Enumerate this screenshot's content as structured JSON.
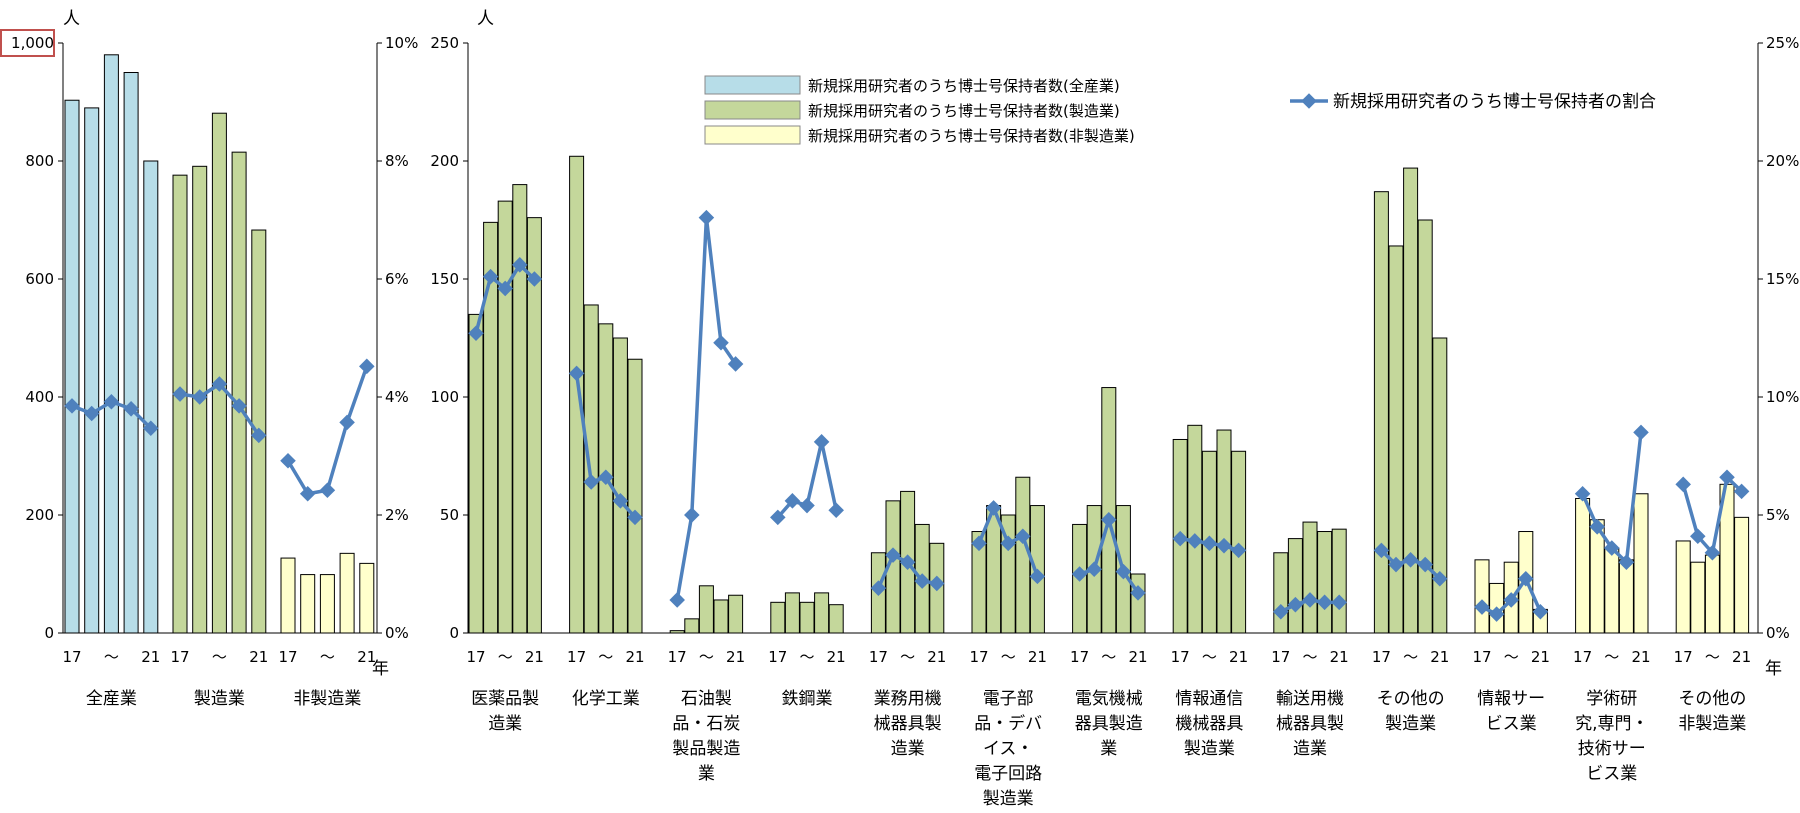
{
  "chart_data": [
    {
      "type": "bar",
      "panel": "left",
      "y_unit": "人",
      "y2_unit": "",
      "x_unit": "年",
      "ylim": [
        0,
        1000
      ],
      "y_ticks": [
        "0",
        "200",
        "400",
        "600",
        "800",
        "1,000"
      ],
      "y2lim": [
        0,
        10
      ],
      "y2_ticks": [
        "0%",
        "2%",
        "4%",
        "6%",
        "8%",
        "10%"
      ],
      "year_labels": [
        "17",
        "～",
        "21"
      ],
      "groups": [
        {
          "label": [
            "全産業"
          ],
          "kind": "all",
          "bars": [
            903,
            890,
            980,
            950,
            800
          ],
          "ratio": [
            3.85,
            3.72,
            3.92,
            3.8,
            3.47
          ]
        },
        {
          "label": [
            "製造業"
          ],
          "kind": "mfg",
          "bars": [
            776,
            791,
            881,
            815,
            683
          ],
          "ratio": [
            4.05,
            4.0,
            4.22,
            3.85,
            3.35
          ]
        },
        {
          "label": [
            "非製造業"
          ],
          "kind": "nonmfg",
          "bars": [
            127,
            99,
            99,
            135,
            118
          ],
          "ratio": [
            2.92,
            2.36,
            2.42,
            3.57,
            4.52
          ]
        }
      ]
    },
    {
      "type": "bar",
      "panel": "right",
      "y_unit": "人",
      "x_unit": "年",
      "ylim": [
        0,
        250
      ],
      "y_ticks": [
        "0",
        "50",
        "100",
        "150",
        "200",
        "250"
      ],
      "y2lim": [
        0,
        25
      ],
      "y2_ticks": [
        "0%",
        "5%",
        "10%",
        "15%",
        "20%",
        "25%"
      ],
      "year_labels": [
        "17",
        "～",
        "21"
      ],
      "legend": {
        "all": "新規採用研究者のうち博士号保持者数(全産業)",
        "mfg": "新規採用研究者のうち博士号保持者数(製造業)",
        "nonmfg": "新規採用研究者のうち博士号保持者数(非製造業)",
        "line": "新規採用研究者のうち博士号保持者の割合"
      },
      "groups": [
        {
          "label": [
            "医薬品製",
            "造業"
          ],
          "kind": "mfg",
          "bars": [
            135,
            174,
            183,
            190,
            176
          ],
          "ratio": [
            12.7,
            15.1,
            14.6,
            15.6,
            15.0
          ]
        },
        {
          "label": [
            "化学工業"
          ],
          "kind": "mfg",
          "bars": [
            202,
            139,
            131,
            125,
            116
          ],
          "ratio": [
            11.0,
            6.4,
            6.6,
            5.6,
            4.9
          ]
        },
        {
          "label": [
            "石油製",
            "品・石炭",
            "製品製造",
            "業"
          ],
          "kind": "mfg",
          "bars": [
            1,
            6,
            20,
            14,
            16
          ],
          "ratio": [
            1.4,
            5.0,
            17.6,
            12.3,
            11.4
          ]
        },
        {
          "label": [
            "鉄鋼業"
          ],
          "kind": "mfg",
          "bars": [
            13,
            17,
            13,
            17,
            12
          ],
          "ratio": [
            4.9,
            5.6,
            5.4,
            8.1,
            5.2
          ]
        },
        {
          "label": [
            "業務用機",
            "械器具製",
            "造業"
          ],
          "kind": "mfg",
          "bars": [
            34,
            56,
            60,
            46,
            38
          ],
          "ratio": [
            1.9,
            3.3,
            3.0,
            2.2,
            2.1
          ]
        },
        {
          "label": [
            "電子部",
            "品・デバ",
            "イス・",
            "電子回路",
            "製造業"
          ],
          "kind": "mfg",
          "bars": [
            43,
            54,
            50,
            66,
            54
          ],
          "ratio": [
            3.8,
            5.3,
            3.8,
            4.1,
            2.4
          ]
        },
        {
          "label": [
            "電気機械",
            "器具製造",
            "業"
          ],
          "kind": "mfg",
          "bars": [
            46,
            54,
            104,
            54,
            25
          ],
          "ratio": [
            2.5,
            2.7,
            4.8,
            2.6,
            1.7
          ]
        },
        {
          "label": [
            "情報通信",
            "機械器具",
            "製造業"
          ],
          "kind": "mfg",
          "bars": [
            82,
            88,
            77,
            86,
            77
          ],
          "ratio": [
            4.0,
            3.9,
            3.8,
            3.7,
            3.5
          ]
        },
        {
          "label": [
            "輸送用機",
            "械器具製",
            "造業"
          ],
          "kind": "mfg",
          "bars": [
            34,
            40,
            47,
            43,
            44
          ],
          "ratio": [
            0.9,
            1.2,
            1.4,
            1.3,
            1.3
          ]
        },
        {
          "label": [
            "その他の",
            "製造業"
          ],
          "kind": "mfg",
          "bars": [
            187,
            164,
            197,
            175,
            125
          ],
          "ratio": [
            3.5,
            2.9,
            3.1,
            2.9,
            2.3
          ]
        },
        {
          "label": [
            "情報サー",
            "ビス業"
          ],
          "kind": "nonmfg",
          "bars": [
            31,
            21,
            30,
            43,
            10
          ],
          "ratio": [
            1.1,
            0.8,
            1.4,
            2.3,
            0.9
          ]
        },
        {
          "label": [
            "学術研",
            "究,専門・",
            "技術サー",
            "ビス業"
          ],
          "kind": "nonmfg",
          "bars": [
            57,
            48,
            36,
            31,
            59
          ],
          "ratio": [
            5.9,
            4.5,
            3.6,
            3.0,
            8.5
          ]
        },
        {
          "label": [
            "その他の",
            "非製造業"
          ],
          "kind": "nonmfg",
          "bars": [
            39,
            30,
            33,
            63,
            49
          ],
          "ratio": [
            6.3,
            4.1,
            3.4,
            6.6,
            6.0
          ]
        }
      ]
    }
  ],
  "colors": {
    "all": "#b7dde8",
    "mfg": "#c4d79b",
    "nonmfg": "#ffffcc",
    "line": "#4f81bd",
    "highlight_box": "#c0504d"
  }
}
